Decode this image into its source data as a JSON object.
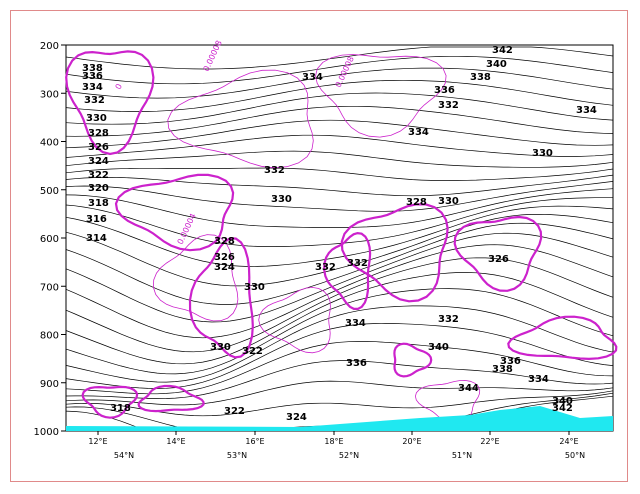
{
  "chart_data": {
    "type": "contour",
    "title": "",
    "xlabel": "",
    "ylabel": "",
    "y_axis": {
      "scale": "pressure (decreasing upward)",
      "ticks": [
        200,
        300,
        400,
        500,
        600,
        700,
        800,
        900,
        1000
      ],
      "ylim": [
        1000,
        200
      ]
    },
    "x_axis_longitude": [
      "12°E",
      "14°E",
      "16°E",
      "18°E",
      "20°E",
      "22°E",
      "24°E"
    ],
    "x_axis_latitude": [
      "54°N",
      "53°N",
      "52°N",
      "51°N",
      "50°N"
    ],
    "series": [
      {
        "name": "",
        "color": "#000000",
        "style": "thin black contours",
        "labels": [
          "338",
          "336",
          "334",
          "332",
          "330",
          "328",
          "326",
          "324",
          "322",
          "320",
          "318",
          "316",
          "314",
          "334",
          "342",
          "340",
          "338",
          "336",
          "334",
          "332",
          "334",
          "330",
          "332",
          "330",
          "328",
          "330",
          "326",
          "332",
          "328",
          "326",
          "324",
          "330",
          "332",
          "334",
          "332",
          "336",
          "340",
          "330",
          "322",
          "336",
          "338",
          "334",
          "344",
          "340",
          "342",
          "318",
          "322",
          "324"
        ]
      },
      {
        "name": "",
        "color": "#cc22cc",
        "style": "magenta contours (thick and thin)",
        "labels": [
          "0.00008",
          "0.00008",
          "0.00004",
          "0"
        ]
      }
    ],
    "terrain_fill_color": "#20e8f0"
  }
}
